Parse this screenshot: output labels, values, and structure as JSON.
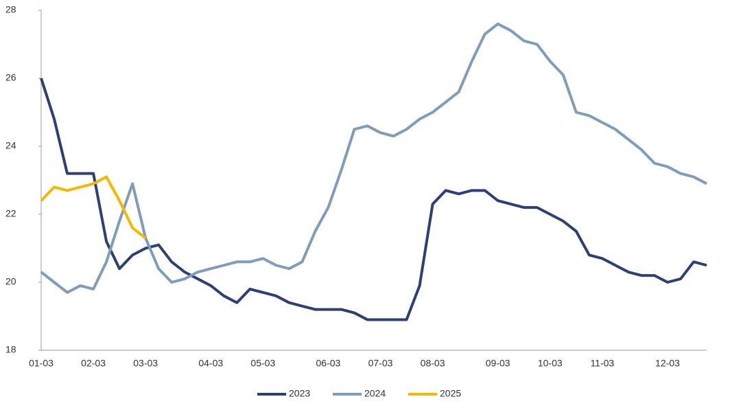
{
  "chart_data": {
    "type": "line",
    "categories": [
      "01-03",
      null,
      null,
      null,
      "02-03",
      null,
      null,
      null,
      "03-03",
      null,
      null,
      null,
      null,
      "04-03",
      null,
      null,
      null,
      "05-03",
      null,
      null,
      null,
      null,
      "06-03",
      null,
      null,
      null,
      "07-03",
      null,
      null,
      null,
      "08-03",
      null,
      null,
      null,
      null,
      "09-03",
      null,
      null,
      null,
      "10-03",
      null,
      null,
      null,
      "11-03",
      null,
      null,
      null,
      null,
      "12-03",
      null,
      null,
      null
    ],
    "series": [
      {
        "name": "2023",
        "color": "#2e3f73",
        "values": [
          26.0,
          24.8,
          23.2,
          23.2,
          23.2,
          21.2,
          20.4,
          20.8,
          21.0,
          21.1,
          20.6,
          20.3,
          20.1,
          19.9,
          19.6,
          19.4,
          19.8,
          19.7,
          19.6,
          19.4,
          19.3,
          19.2,
          19.2,
          19.2,
          19.1,
          18.9,
          18.9,
          18.9,
          18.9,
          19.9,
          22.3,
          22.7,
          22.6,
          22.7,
          22.7,
          22.4,
          22.3,
          22.2,
          22.2,
          22.0,
          21.8,
          21.5,
          20.8,
          20.7,
          20.5,
          20.3,
          20.2,
          20.2,
          20.0,
          20.1,
          20.6,
          20.5
        ]
      },
      {
        "name": "2024",
        "color": "#7f9cbb",
        "values": [
          20.3,
          20.0,
          19.7,
          19.9,
          19.8,
          20.6,
          21.8,
          22.9,
          21.3,
          20.4,
          20.0,
          20.1,
          20.3,
          20.4,
          20.5,
          20.6,
          20.6,
          20.7,
          20.5,
          20.4,
          20.6,
          21.5,
          22.2,
          23.3,
          24.5,
          24.6,
          24.4,
          24.3,
          24.5,
          24.8,
          25.0,
          25.3,
          25.6,
          26.5,
          27.3,
          27.6,
          27.4,
          27.1,
          27.0,
          26.5,
          26.1,
          25.0,
          24.9,
          24.7,
          24.5,
          24.2,
          23.9,
          23.5,
          23.4,
          23.2,
          23.1,
          22.9
        ]
      },
      {
        "name": "2025",
        "color": "#f5b800",
        "values": [
          22.4,
          22.8,
          22.7,
          22.8,
          22.9,
          23.1,
          22.4,
          21.6,
          21.3,
          null,
          null,
          null,
          null,
          null,
          null,
          null,
          null,
          null,
          null,
          null,
          null,
          null,
          null,
          null,
          null,
          null,
          null,
          null,
          null,
          null,
          null,
          null,
          null,
          null,
          null,
          null,
          null,
          null,
          null,
          null,
          null,
          null,
          null,
          null,
          null,
          null,
          null,
          null,
          null,
          null,
          null,
          null
        ]
      }
    ],
    "ylim": [
      18,
      28
    ],
    "yticks": [
      18,
      20,
      22,
      24,
      26,
      28
    ]
  }
}
